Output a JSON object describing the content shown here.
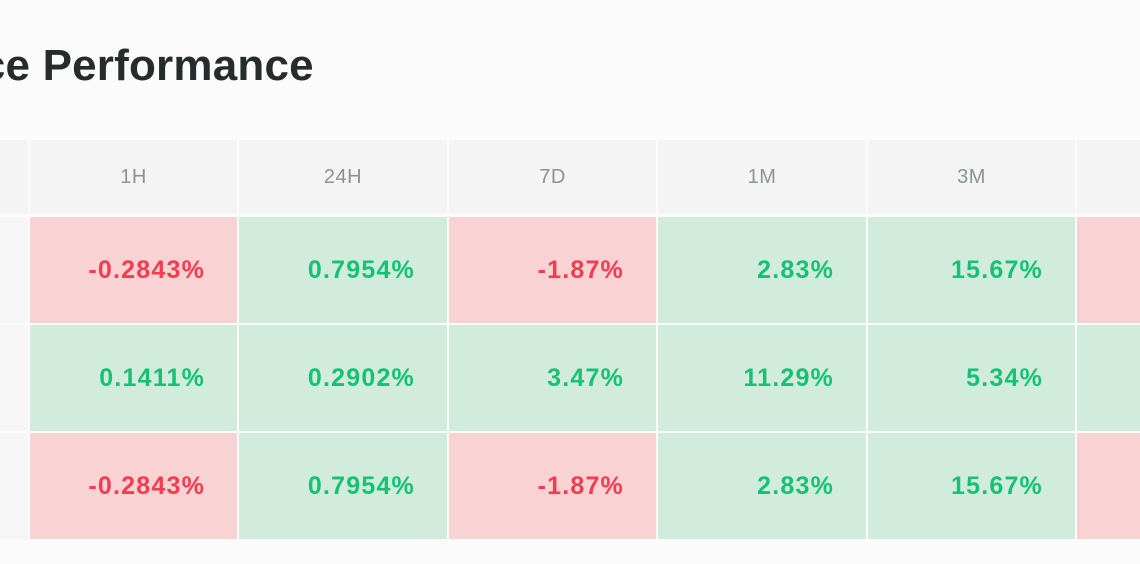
{
  "title": "al Price Performance",
  "columns": [
    "1H",
    "24H",
    "7D",
    "1M",
    "3M"
  ],
  "rows": [
    [
      "-0.2843%",
      "0.7954%",
      "-1.87%",
      "2.83%",
      "15.67%"
    ],
    [
      "0.1411%",
      "0.2902%",
      "3.47%",
      "11.29%",
      "5.34%"
    ],
    [
      "-0.2843%",
      "0.7954%",
      "-1.87%",
      "2.83%",
      "15.67%"
    ]
  ],
  "trailing_column_sign": [
    "negative",
    "positive",
    "negative"
  ],
  "colors": {
    "positive_bg": "#d1ecdd",
    "positive_text": "#15c274",
    "negative_bg": "#f9d2d4",
    "negative_text": "#f53b50",
    "header_bg": "#f4f4f4",
    "header_text": "#8a9494",
    "title_text": "#262b2b"
  }
}
